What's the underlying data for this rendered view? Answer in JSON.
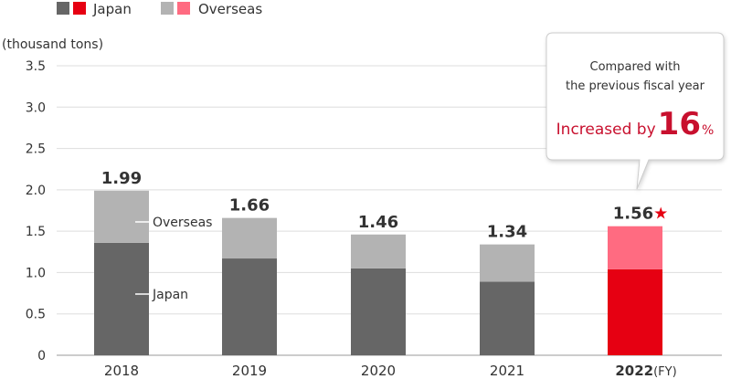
{
  "legend": {
    "japan_label": "Japan",
    "overseas_label": "Overseas"
  },
  "unit_label": "(thousand tons)",
  "callout": {
    "line1": "Compared with",
    "line2": "the previous fiscal year",
    "prefix": "Increased by",
    "value": "16",
    "suffix": "%"
  },
  "colors": {
    "japan": "#666666",
    "overseas": "#b3b3b3",
    "japan_highlight": "#e60012",
    "overseas_highlight": "#ff6b81",
    "grid": "#dddddd",
    "axis": "#999999",
    "text": "#333333",
    "accent": "#c8102e"
  },
  "chart_data": {
    "type": "bar",
    "stacked": true,
    "categories": [
      "2018",
      "2019",
      "2020",
      "2021",
      "2022"
    ],
    "x_suffix": "(FY)",
    "highlight_index": 4,
    "highlight_marker": "★",
    "series": [
      {
        "name": "Japan",
        "values": [
          1.36,
          1.17,
          1.05,
          0.89,
          1.04
        ]
      },
      {
        "name": "Overseas",
        "values": [
          0.63,
          0.49,
          0.41,
          0.45,
          0.52
        ]
      }
    ],
    "totals": [
      "1.99",
      "1.66",
      "1.46",
      "1.34",
      "1.56"
    ],
    "ylim": [
      0,
      3.5
    ],
    "yticks": [
      "0",
      "0.5",
      "1.0",
      "1.5",
      "2.0",
      "2.5",
      "3.0",
      "3.5"
    ],
    "grid": true,
    "annotations": {
      "overseas": "Overseas",
      "japan": "Japan"
    }
  }
}
